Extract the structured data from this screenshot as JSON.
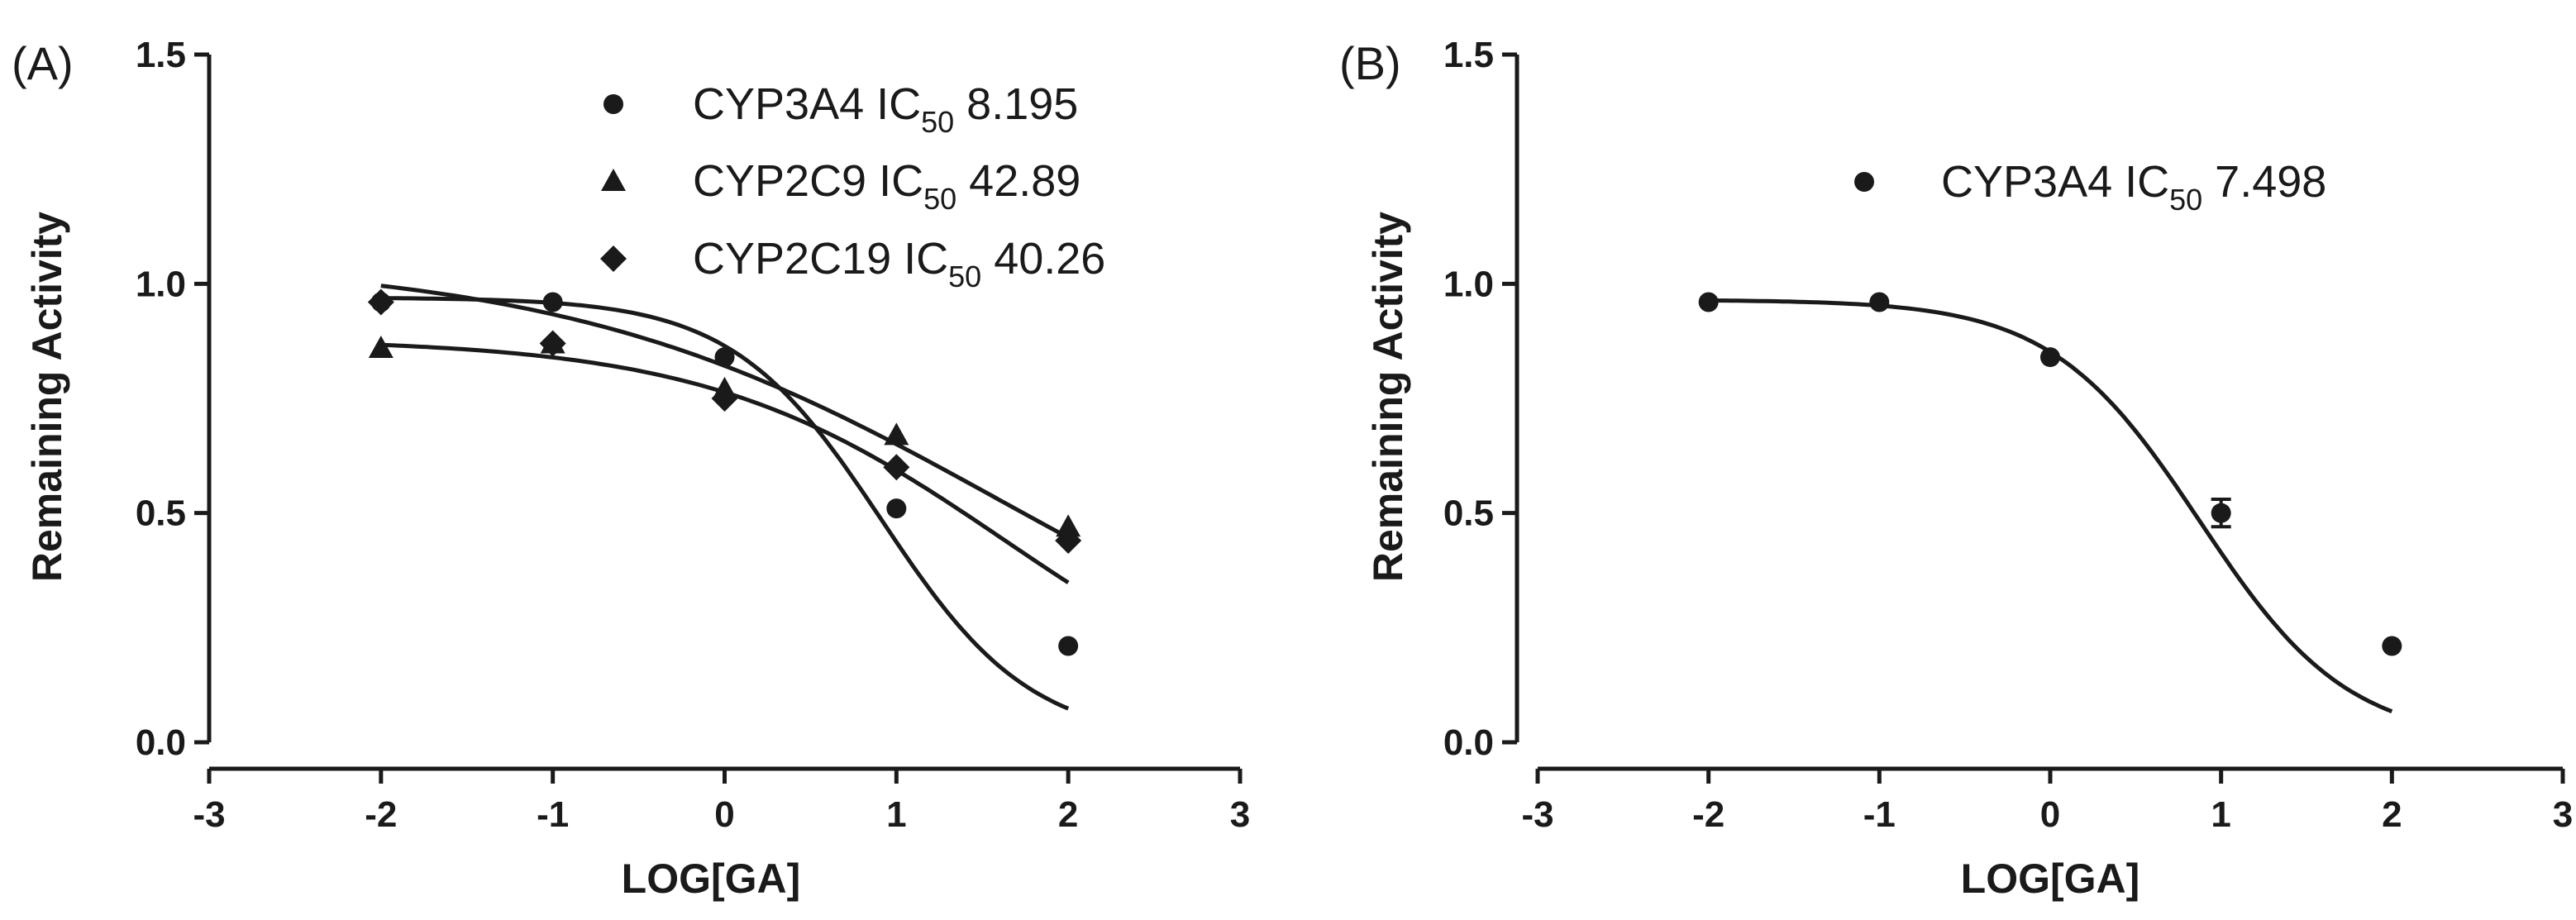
{
  "colors": {
    "ink": "#1a1a1a",
    "background": "#ffffff"
  },
  "chart_data": [
    {
      "type": "scatter",
      "panel_label": "(A)",
      "xlabel": "LOG[GA]",
      "ylabel": "Remaining Activity",
      "xlim": [
        -3,
        3
      ],
      "ylim": [
        0,
        1.5
      ],
      "xticks": [
        "-3",
        "-2",
        "-1",
        "0",
        "1",
        "2",
        "3"
      ],
      "yticks": [
        "0.0",
        "0.5",
        "1.0",
        "1.5"
      ],
      "legend_position": "top-right",
      "x": [
        -2,
        -1,
        0,
        1,
        2
      ],
      "series": [
        {
          "name": "CYP3A4",
          "marker": "circle",
          "ic50_prefix": "IC",
          "ic50_sub": "50",
          "ic50_value": "8.195",
          "ic50": 8.195,
          "top": 0.97,
          "bottom": 0.0,
          "hill": 1.0,
          "values": [
            0.96,
            0.96,
            0.84,
            0.51,
            0.21
          ]
        },
        {
          "name": "CYP2C9",
          "marker": "triangle",
          "ic50_prefix": "IC",
          "ic50_sub": "50",
          "ic50_value": "42.89",
          "ic50": 42.89,
          "top": 0.88,
          "bottom": 0.0,
          "hill": 0.5,
          "values": [
            0.86,
            0.87,
            0.77,
            0.67,
            0.47
          ]
        },
        {
          "name": "CYP2C19",
          "marker": "diamond",
          "ic50_prefix": "IC",
          "ic50_sub": "50",
          "ic50_value": "40.26",
          "ic50": 40.26,
          "top": 1.055,
          "bottom": 0.0,
          "hill": 0.34,
          "values": [
            0.96,
            0.87,
            0.75,
            0.6,
            0.44
          ]
        }
      ]
    },
    {
      "type": "scatter",
      "panel_label": "(B)",
      "xlabel": "LOG[GA]",
      "ylabel": "Remaining Activity",
      "xlim": [
        -3,
        3
      ],
      "ylim": [
        0,
        1.5
      ],
      "xticks": [
        "-3",
        "-2",
        "-1",
        "0",
        "1",
        "2",
        "3"
      ],
      "yticks": [
        "0.0",
        "0.5",
        "1.0",
        "1.5"
      ],
      "legend_position": "top-center",
      "x": [
        -2,
        -1,
        0,
        1,
        2
      ],
      "series": [
        {
          "name": "CYP3A4",
          "marker": "circle",
          "ic50_prefix": "IC",
          "ic50_sub": "50",
          "ic50_value": "7.498",
          "ic50": 7.498,
          "top": 0.965,
          "bottom": 0.0,
          "hill": 1.0,
          "values": [
            0.96,
            0.96,
            0.84,
            0.5,
            0.21
          ],
          "errors": [
            0,
            0,
            0,
            0.03,
            0
          ]
        }
      ]
    }
  ]
}
